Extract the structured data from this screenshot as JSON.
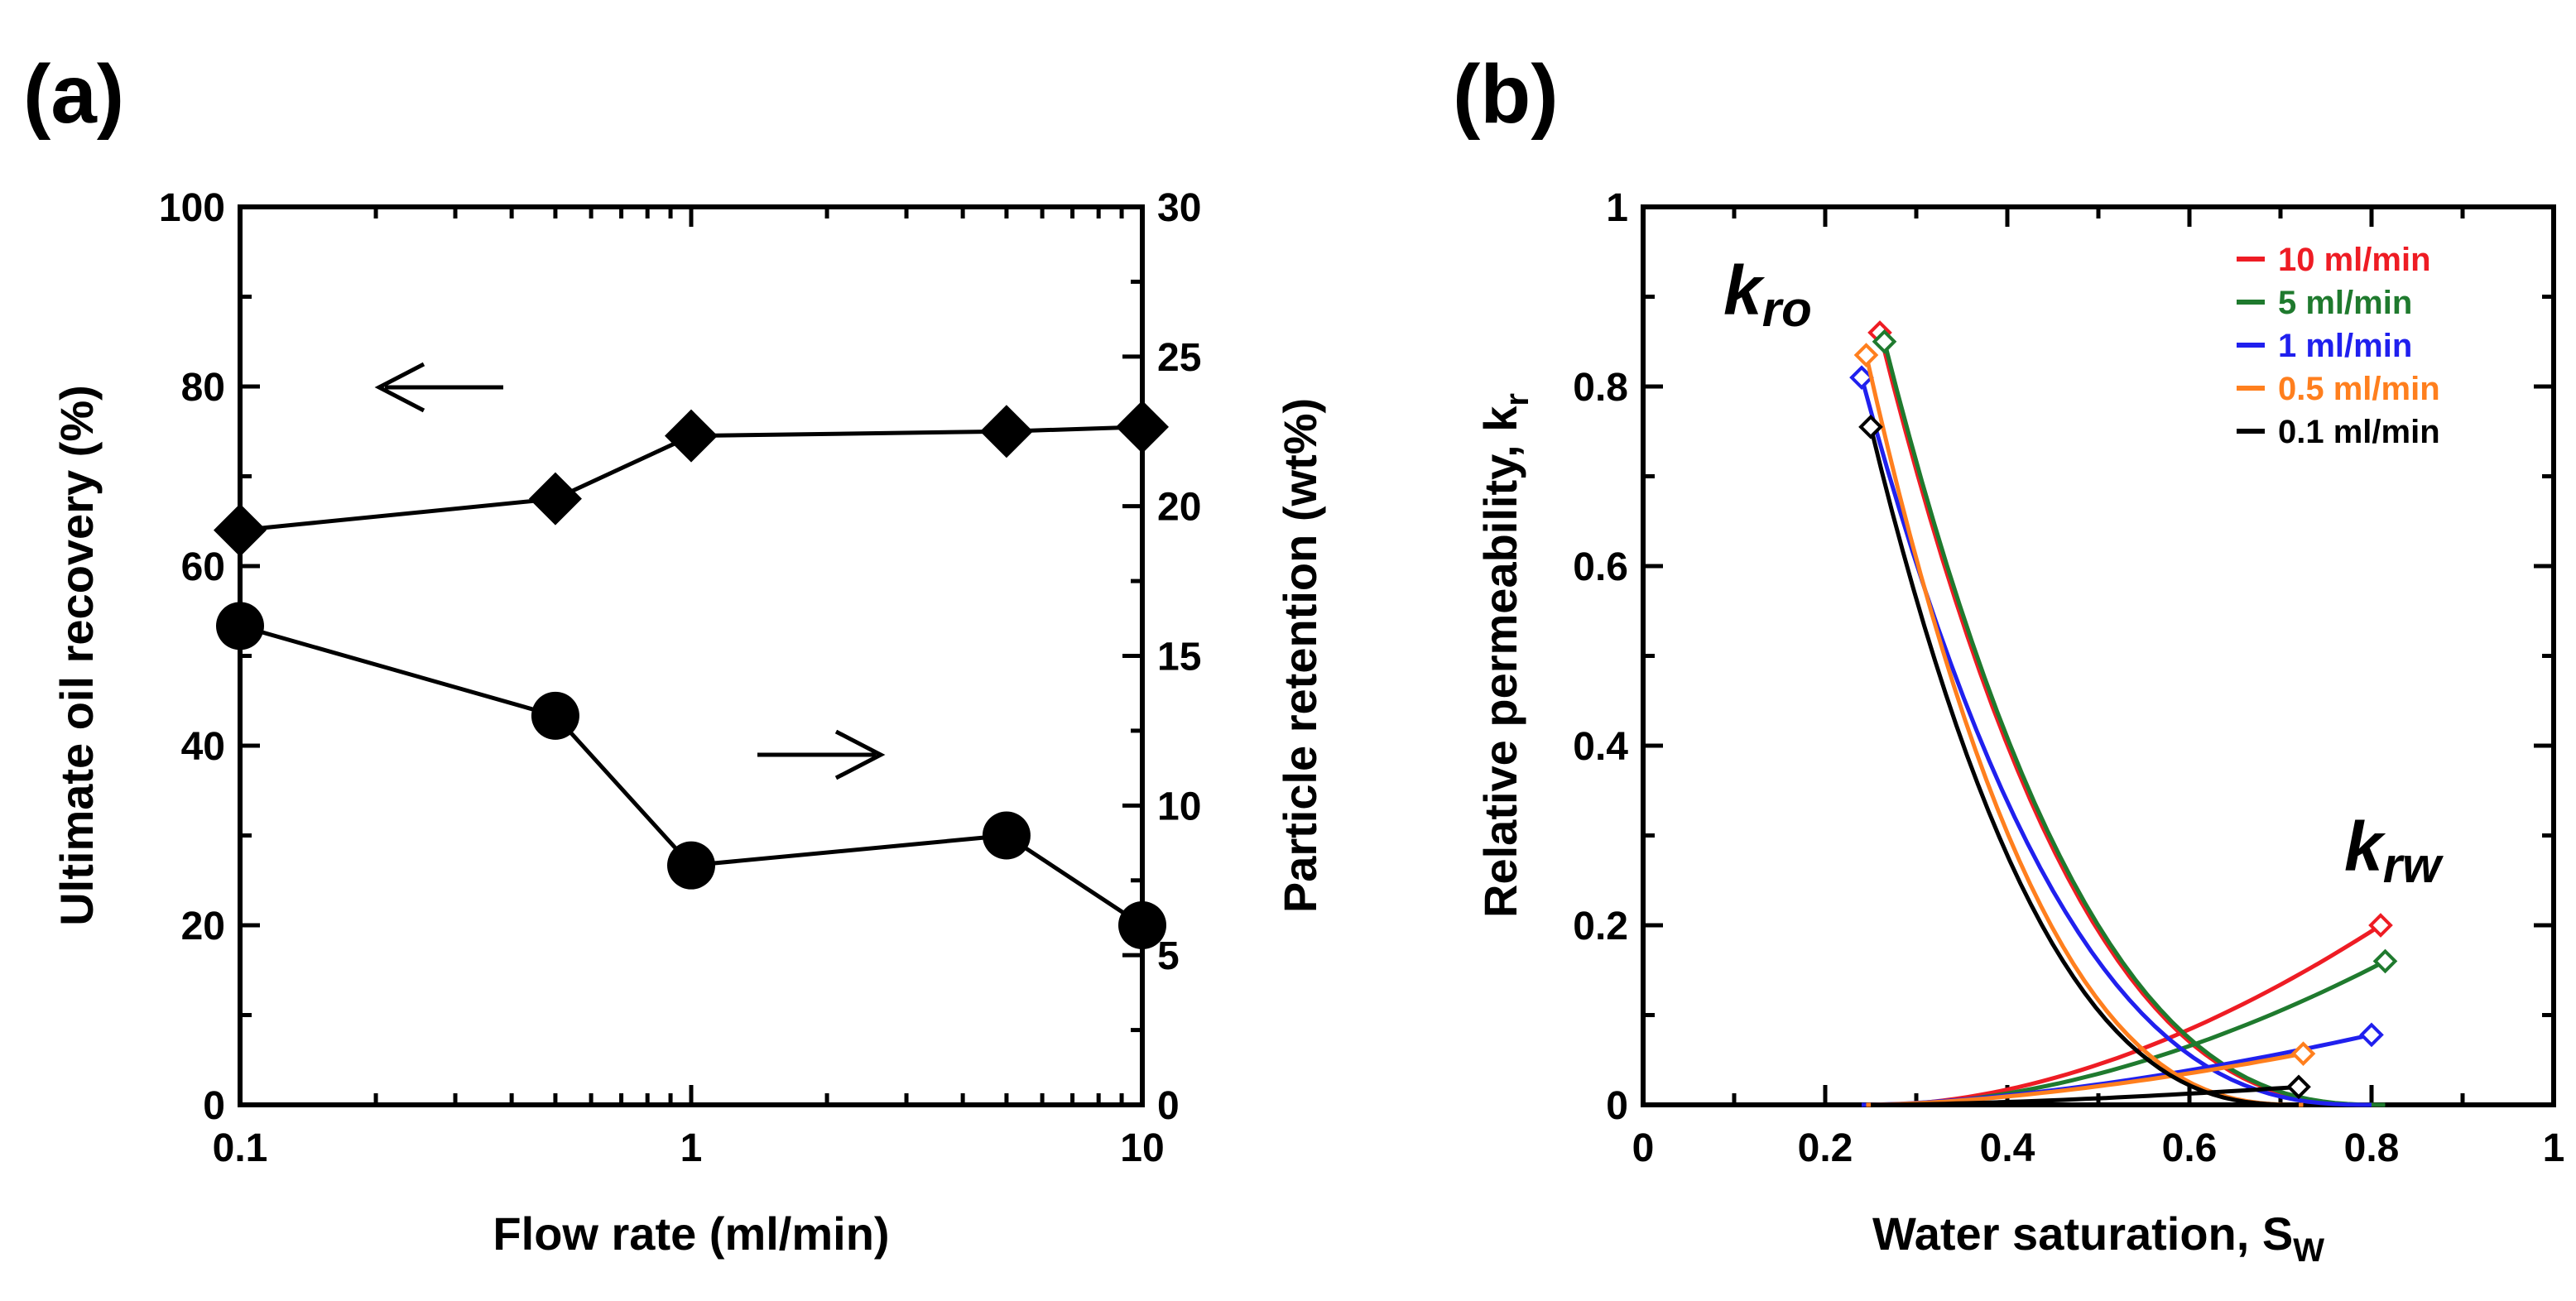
{
  "chart_data": [
    {
      "panel_label": "(a)",
      "type": "line",
      "xscale": "log",
      "xlabel": "Flow rate (ml/min)",
      "ylabel_left": "Ultimate oil recovery (%)",
      "ylabel_right": "Particle retention (wt%)",
      "xlim": [
        0.1,
        10
      ],
      "ylim_left": [
        0,
        100
      ],
      "ylim_right": [
        0,
        30
      ],
      "x_ticks": [
        {
          "v": 0.1,
          "label": "0.1"
        },
        {
          "v": 1,
          "label": "1"
        },
        {
          "v": 10,
          "label": "10"
        }
      ],
      "y_ticks_left": [
        "0",
        "20",
        "40",
        "60",
        "80",
        "100"
      ],
      "y_ticks_right": [
        "0",
        "5",
        "10",
        "15",
        "20",
        "25",
        "30"
      ],
      "series": [
        {
          "name": "Ultimate oil recovery",
          "axis": "left",
          "marker": "diamond",
          "arrow": "left",
          "x": [
            0.1,
            0.5,
            1,
            5,
            10
          ],
          "values": [
            64,
            67.5,
            74.5,
            75,
            75.5
          ]
        },
        {
          "name": "Particle retention",
          "axis": "right",
          "marker": "circle",
          "arrow": "right",
          "x": [
            0.1,
            0.5,
            1,
            5,
            10
          ],
          "values": [
            16,
            13,
            8,
            9,
            6
          ]
        }
      ]
    },
    {
      "panel_label": "(b)",
      "type": "line",
      "xlabel": "Water saturation, S",
      "xlabel_sub": "W",
      "ylabel": "Relative permeability, k",
      "ylabel_sub": "r",
      "xlim": [
        0,
        1
      ],
      "ylim": [
        0,
        1
      ],
      "x_ticks": [
        "0",
        "0.2",
        "0.4",
        "0.6",
        "0.8",
        "1"
      ],
      "y_ticks": [
        "0",
        "0.2",
        "0.4",
        "0.6",
        "0.8",
        "1"
      ],
      "annotations": [
        {
          "text": "k",
          "sub": "ro",
          "near": "top-left"
        },
        {
          "text": "k",
          "sub": "rw",
          "near": "right"
        }
      ],
      "legend_position": "top-right",
      "series": [
        {
          "name": "10 ml/min",
          "color": "#ee1c24",
          "swi": 0.26,
          "sor_end": 0.81,
          "kro_max": 0.86,
          "krw_max": 0.2,
          "no": 2.6,
          "nw": 1.8
        },
        {
          "name": "5 ml/min",
          "color": "#1f7a2e",
          "swi": 0.265,
          "sor_end": 0.815,
          "kro_max": 0.85,
          "krw_max": 0.16,
          "no": 2.6,
          "nw": 1.8
        },
        {
          "name": "1 ml/min",
          "color": "#2020ee",
          "swi": 0.24,
          "sor_end": 0.8,
          "kro_max": 0.81,
          "krw_max": 0.078,
          "no": 2.6,
          "nw": 1.6
        },
        {
          "name": "0.5 ml/min",
          "color": "#ff7f1e",
          "swi": 0.245,
          "sor_end": 0.725,
          "kro_max": 0.835,
          "krw_max": 0.057,
          "no": 2.6,
          "nw": 1.6
        },
        {
          "name": "0.1 ml/min",
          "color": "#000000",
          "swi": 0.25,
          "sor_end": 0.72,
          "kro_max": 0.755,
          "krw_max": 0.02,
          "no": 2.6,
          "nw": 1.6
        }
      ]
    }
  ]
}
